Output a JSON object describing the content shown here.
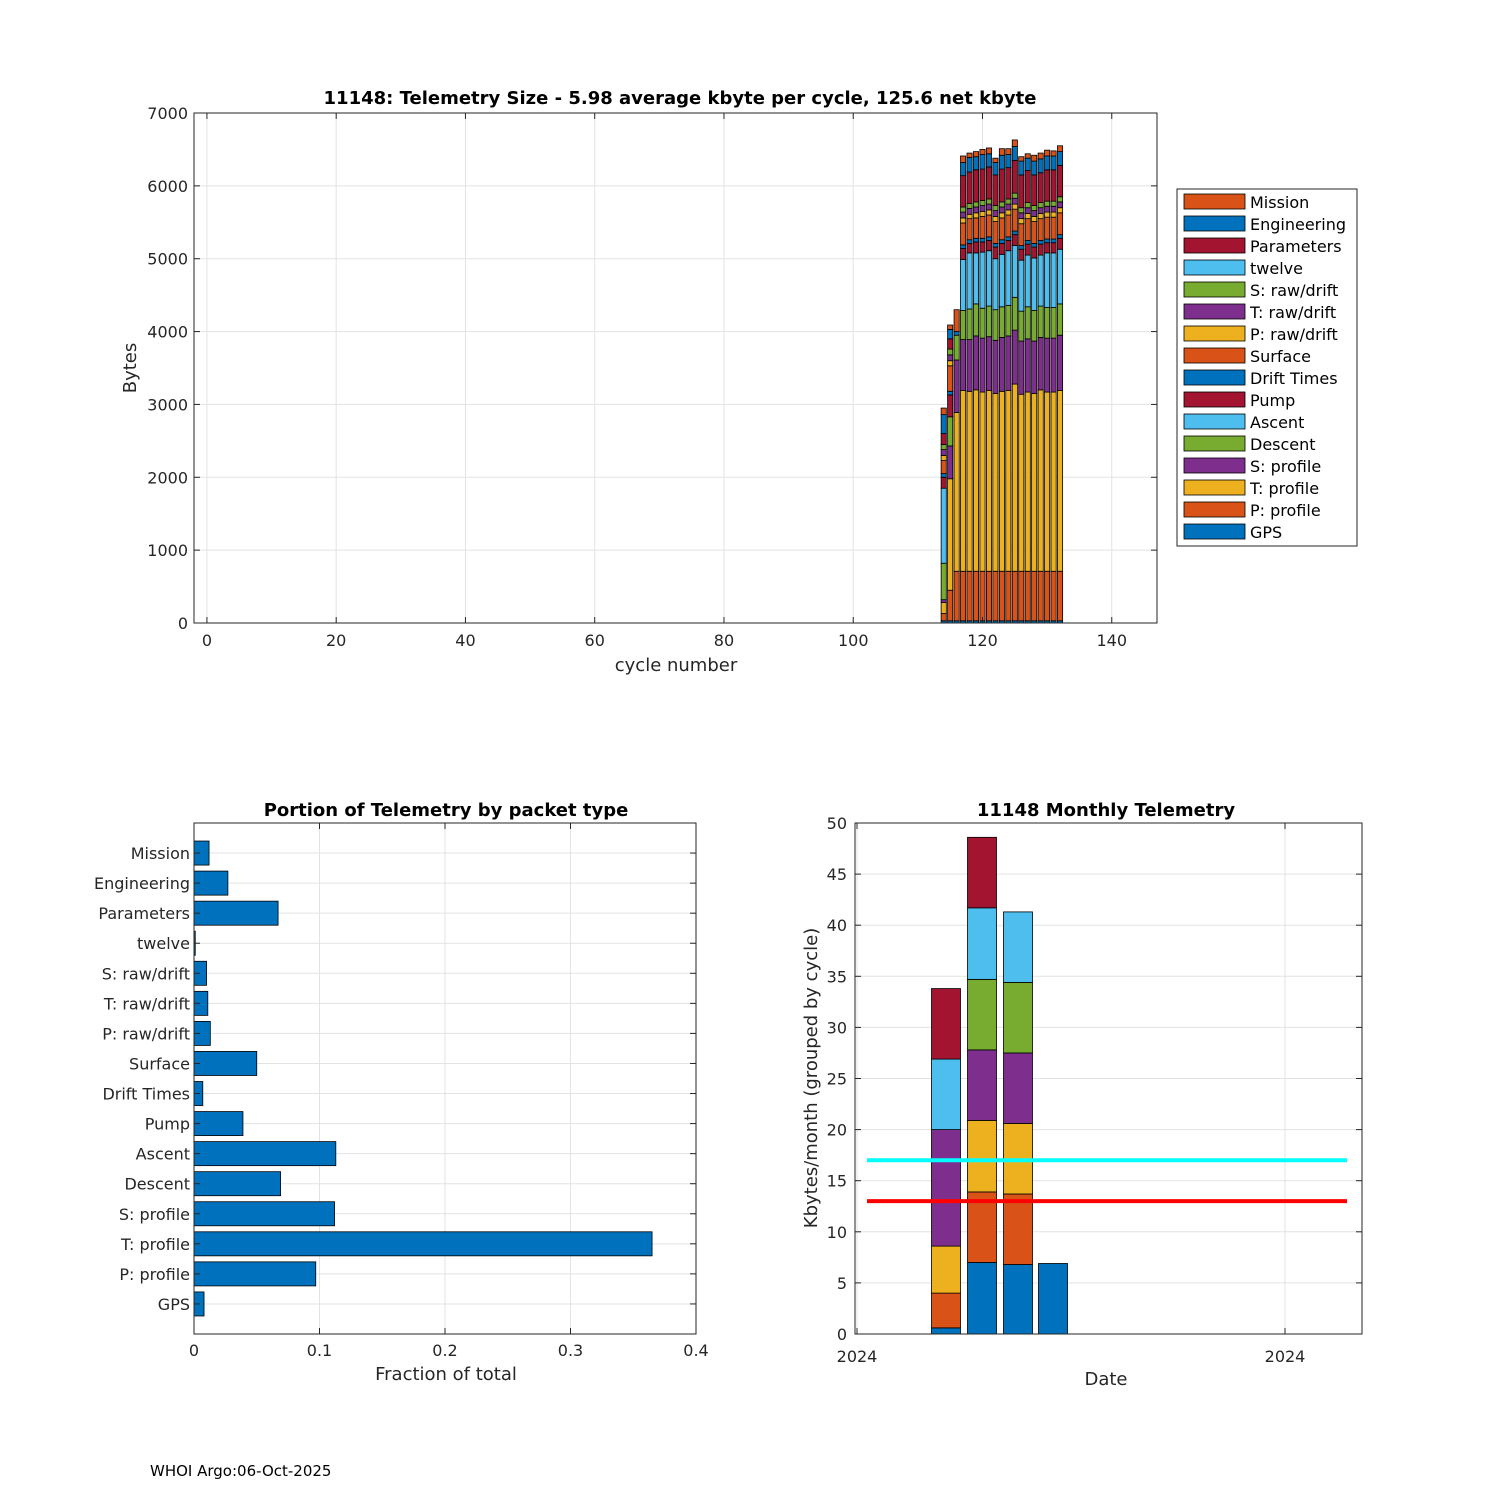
{
  "colors": {
    "blue": "#0072BD",
    "orange": "#D95319",
    "yellow": "#EDB120",
    "purple": "#7E2F8E",
    "green": "#77AC30",
    "cyan": "#4DBEEE",
    "maroon": "#A2142F",
    "ref_cyan": "#00FFFF",
    "ref_red": "#FF0000"
  },
  "packet_types": [
    "GPS",
    "P: profile",
    "T: profile",
    "S: profile",
    "Descent",
    "Ascent",
    "Pump",
    "Drift Times",
    "Surface",
    "P: raw/drift",
    "T: raw/drift",
    "S: raw/drift",
    "twelve",
    "Parameters",
    "Engineering",
    "Mission"
  ],
  "chart_data": [
    {
      "id": "telemetry-size",
      "type": "bar",
      "stacked": true,
      "title": "11148: Telemetry Size - 5.98 average kbyte per cycle,  125.6 net kbyte",
      "xlabel": "cycle number",
      "ylabel": "Bytes",
      "xlim": [
        -2,
        147
      ],
      "ylim": [
        0,
        7000
      ],
      "xticks": [
        0,
        20,
        40,
        60,
        80,
        100,
        120,
        140
      ],
      "yticks": [
        0,
        1000,
        2000,
        3000,
        4000,
        5000,
        6000,
        7000
      ],
      "grid": true,
      "legend_position": "outside-right",
      "legend_order": [
        "Mission",
        "Engineering",
        "Parameters",
        "twelve",
        "S: raw/drift",
        "T: raw/drift",
        "P: raw/drift",
        "Surface",
        "Drift Times",
        "Pump",
        "Ascent",
        "Descent",
        "S: profile",
        "T: profile",
        "P: profile",
        "GPS"
      ],
      "bars": [
        {
          "cycle": 114,
          "segments": [
            30,
            100,
            150,
            40,
            500,
            1030,
            150,
            50,
            180,
            70,
            80,
            70,
            0,
            150,
            260,
            90
          ]
        },
        {
          "cycle": 115,
          "segments": [
            30,
            420,
            1530,
            450,
            400,
            0,
            300,
            50,
            350,
            70,
            80,
            80,
            0,
            140,
            130,
            60
          ]
        },
        {
          "cycle": 116,
          "segments": [
            30,
            680,
            2180,
            720,
            340,
            0,
            0,
            50,
            300,
            0,
            0,
            0,
            0,
            0,
            0,
            0
          ]
        },
        {
          "cycle": 117,
          "segments": [
            30,
            680,
            2480,
            700,
            400,
            700,
            150,
            50,
            300,
            70,
            80,
            70,
            0,
            430,
            180,
            90
          ]
        },
        {
          "cycle": 118,
          "segments": [
            30,
            680,
            2470,
            710,
            420,
            770,
            130,
            50,
            290,
            60,
            80,
            70,
            0,
            430,
            200,
            60
          ]
        },
        {
          "cycle": 119,
          "segments": [
            30,
            680,
            2490,
            740,
            440,
            700,
            150,
            50,
            280,
            70,
            80,
            70,
            0,
            440,
            180,
            70
          ]
        },
        {
          "cycle": 120,
          "segments": [
            30,
            680,
            2460,
            740,
            410,
            770,
            140,
            50,
            300,
            70,
            80,
            70,
            0,
            430,
            200,
            70
          ]
        },
        {
          "cycle": 121,
          "segments": [
            30,
            680,
            2480,
            740,
            420,
            760,
            140,
            50,
            300,
            70,
            80,
            70,
            0,
            440,
            180,
            80
          ]
        },
        {
          "cycle": 122,
          "segments": [
            30,
            680,
            2440,
            730,
            420,
            700,
            160,
            50,
            300,
            70,
            80,
            70,
            0,
            420,
            170,
            60
          ]
        },
        {
          "cycle": 123,
          "segments": [
            30,
            680,
            2470,
            740,
            420,
            720,
            150,
            50,
            300,
            70,
            80,
            70,
            0,
            450,
            190,
            90
          ]
        },
        {
          "cycle": 124,
          "segments": [
            30,
            680,
            2480,
            750,
            420,
            750,
            140,
            50,
            300,
            70,
            80,
            70,
            0,
            430,
            180,
            80
          ]
        },
        {
          "cycle": 125,
          "segments": [
            30,
            680,
            2570,
            740,
            450,
            710,
            150,
            50,
            300,
            70,
            80,
            70,
            0,
            450,
            190,
            90
          ]
        },
        {
          "cycle": 126,
          "segments": [
            30,
            680,
            2430,
            730,
            410,
            700,
            150,
            50,
            300,
            70,
            80,
            70,
            0,
            450,
            190,
            60
          ]
        },
        {
          "cycle": 127,
          "segments": [
            30,
            680,
            2460,
            730,
            440,
            710,
            150,
            50,
            300,
            70,
            80,
            70,
            0,
            440,
            170,
            60
          ]
        },
        {
          "cycle": 128,
          "segments": [
            30,
            680,
            2440,
            720,
            420,
            720,
            150,
            50,
            300,
            70,
            80,
            70,
            0,
            420,
            190,
            80
          ]
        },
        {
          "cycle": 129,
          "segments": [
            30,
            680,
            2490,
            720,
            430,
            700,
            150,
            50,
            300,
            70,
            80,
            70,
            0,
            410,
            190,
            80
          ]
        },
        {
          "cycle": 130,
          "segments": [
            30,
            680,
            2460,
            740,
            420,
            750,
            140,
            50,
            300,
            70,
            80,
            70,
            0,
            430,
            190,
            80
          ]
        },
        {
          "cycle": 131,
          "segments": [
            30,
            680,
            2460,
            740,
            420,
            750,
            140,
            50,
            300,
            70,
            80,
            70,
            0,
            430,
            190,
            70
          ]
        },
        {
          "cycle": 132,
          "segments": [
            30,
            680,
            2480,
            760,
            430,
            750,
            150,
            50,
            300,
            70,
            80,
            70,
            0,
            430,
            190,
            80
          ]
        }
      ]
    },
    {
      "id": "portion-by-packet",
      "type": "bar",
      "orientation": "horizontal",
      "title": "Portion of Telemetry by packet type",
      "xlabel": "Fraction of total",
      "ylabel": "",
      "xlim": [
        0,
        0.4
      ],
      "xticks": [
        0,
        0.1,
        0.2,
        0.3,
        0.4
      ],
      "tick_labels": [
        "0",
        "0.1",
        "0.2",
        "0.3",
        "0.4"
      ],
      "grid": true,
      "categories": [
        "GPS",
        "P: profile",
        "T: profile",
        "S: profile",
        "Descent",
        "Ascent",
        "Pump",
        "Drift Times",
        "Surface",
        "P: raw/drift",
        "T: raw/drift",
        "S: raw/drift",
        "twelve",
        "Parameters",
        "Engineering",
        "Mission"
      ],
      "values": [
        0.008,
        0.097,
        0.365,
        0.112,
        0.069,
        0.113,
        0.039,
        0.007,
        0.05,
        0.013,
        0.011,
        0.01,
        0.001,
        0.067,
        0.027,
        0.012
      ]
    },
    {
      "id": "monthly-telemetry",
      "type": "bar",
      "stacked": true,
      "title": "11148 Monthly Telemetry",
      "xlabel": "Date",
      "ylabel": "Kbytes/month (grouped by cycle)",
      "ylim": [
        0,
        50
      ],
      "yticks": [
        0,
        5,
        10,
        15,
        20,
        25,
        30,
        35,
        40,
        45,
        50
      ],
      "x_tick_labels": [
        "2024",
        "2024"
      ],
      "grid": true,
      "segment_colors": [
        "blue",
        "orange",
        "yellow",
        "purple",
        "green",
        "cyan",
        "maroon"
      ],
      "groups": [
        {
          "segments": [
            0.6,
            3.4,
            4.6,
            11.4,
            0,
            6.9,
            6.9
          ]
        },
        {
          "segments": [
            7.0,
            6.9,
            7.0,
            6.9,
            6.9,
            7.0,
            6.9
          ]
        },
        {
          "segments": [
            6.8,
            6.9,
            6.9,
            6.9,
            6.9,
            6.9,
            0
          ]
        },
        {
          "segments": [
            6.9,
            0,
            0,
            0,
            0,
            0,
            0
          ]
        }
      ],
      "reference_lines": [
        {
          "name": "cyan-reference",
          "value": 17,
          "color": "ref_cyan"
        },
        {
          "name": "red-reference",
          "value": 13,
          "color": "ref_red"
        }
      ]
    }
  ],
  "footer": "WHOI Argo:06-Oct-2025"
}
